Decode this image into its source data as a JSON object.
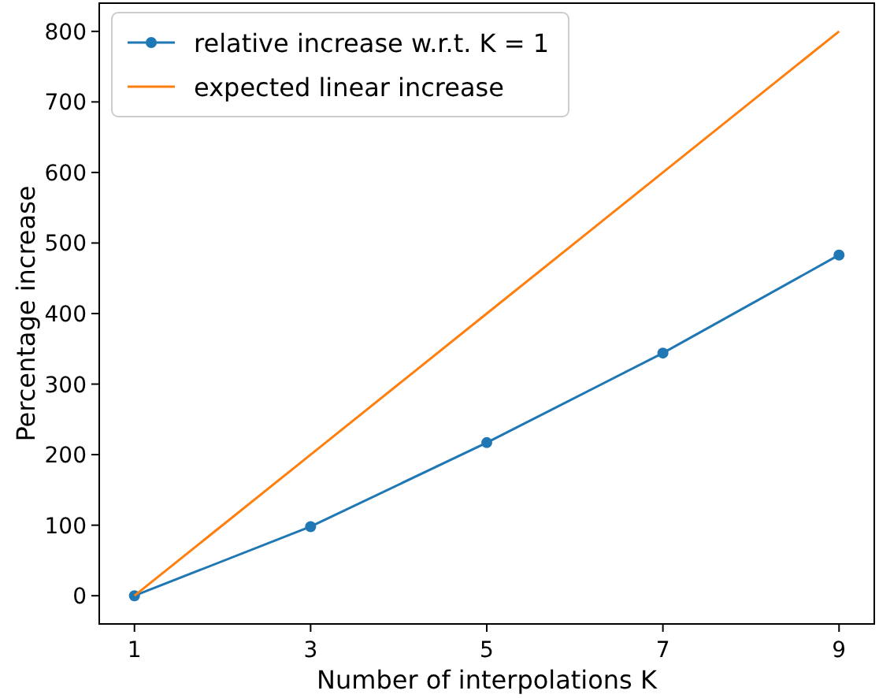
{
  "chart_data": {
    "type": "line",
    "xlabel": "Number of interpolations K",
    "ylabel": "Percentage increase",
    "x": [
      1,
      3,
      5,
      7,
      9
    ],
    "xlim": [
      0.6,
      9.4
    ],
    "ylim": [
      -40,
      840
    ],
    "xticks": [
      1,
      3,
      5,
      7,
      9
    ],
    "yticks": [
      0,
      100,
      200,
      300,
      400,
      500,
      600,
      700,
      800
    ],
    "legend": "top left",
    "grid": false,
    "series": [
      {
        "name": "relative increase w.r.t. K = 1",
        "color": "#1f77b4",
        "values": [
          0,
          98,
          217,
          344,
          483
        ],
        "marker": "circle"
      },
      {
        "name": "expected linear increase",
        "color": "#ff7f0e",
        "values": [
          0,
          200,
          400,
          600,
          800
        ],
        "marker": "none"
      }
    ]
  }
}
